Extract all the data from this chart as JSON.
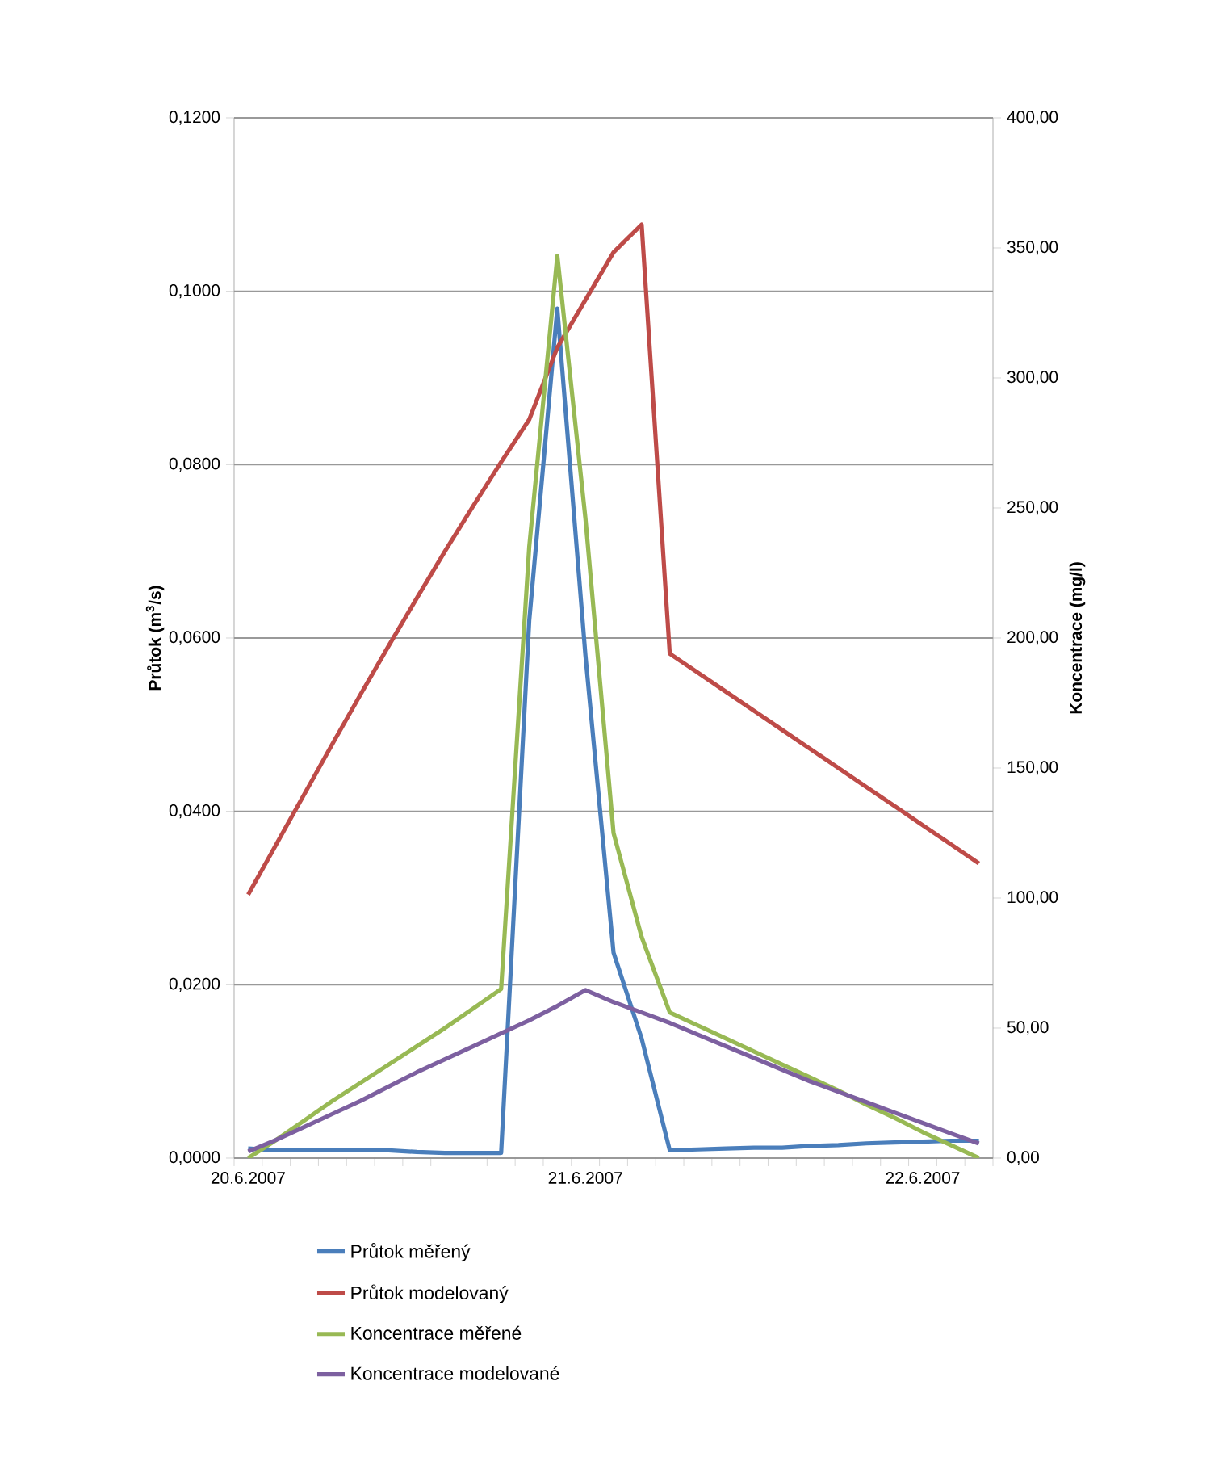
{
  "chart_data": {
    "type": "line",
    "categories": [
      "20.6.2007",
      null,
      null,
      null,
      null,
      null,
      null,
      null,
      null,
      null,
      null,
      null,
      "21.6.2007",
      null,
      null,
      null,
      null,
      null,
      null,
      null,
      null,
      null,
      null,
      null,
      "22.6.2007",
      null,
      null
    ],
    "ylabel": "Průtok (m$^{3}$/s)",
    "y2label": "Koncentrace  (mg/l)",
    "ylim": [
      0,
      0.12
    ],
    "yticks": [
      {
        "value": 0,
        "label": "0,0000"
      },
      {
        "value": 0.02,
        "label": "0,0200"
      },
      {
        "value": 0.04,
        "label": "0,0400"
      },
      {
        "value": 0.06,
        "label": "0,0600"
      },
      {
        "value": 0.08,
        "label": "0,0800"
      },
      {
        "value": 0.1,
        "label": "0,1000"
      },
      {
        "value": 0.12,
        "label": "0,1200"
      }
    ],
    "y2lim": [
      0,
      400
    ],
    "y2ticks": [
      {
        "value": 0,
        "label": "0,00"
      },
      {
        "value": 50,
        "label": "50,00"
      },
      {
        "value": 100,
        "label": "100,00"
      },
      {
        "value": 150,
        "label": "150,00"
      },
      {
        "value": 200,
        "label": "200,00"
      },
      {
        "value": 250,
        "label": "250,00"
      },
      {
        "value": 300,
        "label": "300,00"
      },
      {
        "value": 350,
        "label": "350,00"
      },
      {
        "value": 400,
        "label": "400,00"
      }
    ],
    "grid": "y",
    "legend": "bottom",
    "series": [
      {
        "name": "Průtok měřený",
        "color": "#4a7ebb",
        "values": [
          0.0011,
          0.0009,
          0.0009,
          0.0009,
          0.0009,
          0.0009,
          0.0007,
          0.0006,
          0.0006,
          0.0006,
          0.062,
          0.098,
          0.058,
          0.0237,
          0.0138,
          0.0009,
          0.001,
          0.0011,
          0.0012,
          0.0012,
          0.0014,
          0.0015,
          0.0017,
          0.0018,
          0.0019,
          0.002,
          0.002
        ]
      },
      {
        "name": "Průtok modelovaný",
        "color": "#be4b48",
        "values": [
          0.0304,
          0.0362,
          0.042,
          0.0478,
          0.0535,
          0.0591,
          0.0646,
          0.07,
          0.0752,
          0.0803,
          0.0852,
          0.0935,
          0.099,
          0.1045,
          0.1077,
          0.0582,
          0.056,
          0.0538,
          0.0516,
          0.0494,
          0.0472,
          0.045,
          0.0428,
          0.0406,
          0.0384,
          0.0362,
          0.034
        ]
      },
      {
        "name": "Koncentrace měřené",
        "color": "#98b954",
        "axis": "y2",
        "values": [
          0,
          7,
          14.5,
          22,
          29,
          36,
          43,
          50,
          57.5,
          65,
          235,
          347,
          246,
          125,
          85,
          56,
          51,
          46,
          41,
          36,
          31,
          26,
          20.5,
          15.5,
          10,
          5,
          0
        ]
      },
      {
        "name": "Koncentrace modelované",
        "color": "#7d60a0",
        "axis": "y2",
        "values": [
          2.5,
          7,
          12,
          17,
          22,
          27.5,
          33,
          38,
          43,
          48,
          53,
          58.5,
          64.6,
          60,
          56,
          52,
          47.5,
          43,
          38.5,
          34,
          29.5,
          25.5,
          21.5,
          17.5,
          13.5,
          9.5,
          5.6
        ]
      }
    ]
  }
}
